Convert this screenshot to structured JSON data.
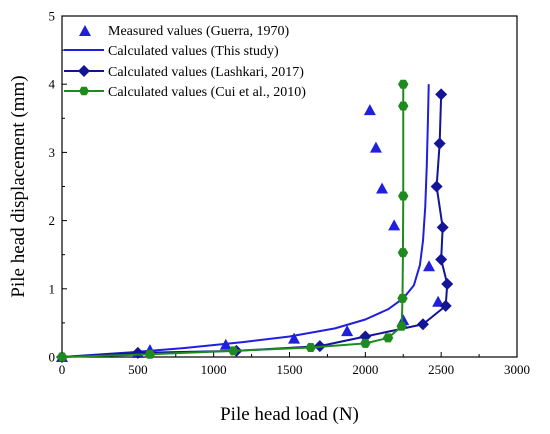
{
  "chart_data": {
    "type": "line",
    "title": "",
    "xlabel": "Pile head load (N)",
    "ylabel": "Pile head displacement (mm)",
    "xlim": [
      0,
      3000
    ],
    "ylim": [
      0,
      5
    ],
    "xticks": [
      0,
      500,
      1000,
      1500,
      2000,
      2500,
      3000
    ],
    "yticks": [
      0,
      1,
      2,
      3,
      4,
      5
    ],
    "grid": false,
    "legend_position": "top-left",
    "series": [
      {
        "name": "Measured values (Guerra, 1970)",
        "kind": "scatter",
        "marker": "triangle",
        "color": "#1f1fdd",
        "points": [
          [
            0,
            0
          ],
          [
            500,
            0.06
          ],
          [
            580,
            0.1
          ],
          [
            1080,
            0.18
          ],
          [
            1530,
            0.27
          ],
          [
            1880,
            0.38
          ],
          [
            2030,
            3.62
          ],
          [
            2070,
            3.07
          ],
          [
            2110,
            2.47
          ],
          [
            2190,
            1.93
          ],
          [
            2250,
            0.54
          ],
          [
            2420,
            1.33
          ],
          [
            2480,
            0.81
          ]
        ]
      },
      {
        "name": "Calculated values (This study)",
        "kind": "line",
        "marker": "none",
        "color": "#1f1fdd",
        "points": [
          [
            0,
            0
          ],
          [
            400,
            0.06
          ],
          [
            800,
            0.13
          ],
          [
            1200,
            0.22
          ],
          [
            1500,
            0.3
          ],
          [
            1800,
            0.42
          ],
          [
            2000,
            0.55
          ],
          [
            2150,
            0.7
          ],
          [
            2250,
            0.86
          ],
          [
            2320,
            1.05
          ],
          [
            2360,
            1.35
          ],
          [
            2380,
            1.7
          ],
          [
            2395,
            2.2
          ],
          [
            2405,
            2.8
          ],
          [
            2412,
            3.4
          ],
          [
            2418,
            4.0
          ]
        ]
      },
      {
        "name": "Calculated values (Lashkari, 2017)",
        "kind": "line",
        "marker": "diamond",
        "color": "#141496",
        "points": [
          [
            0,
            0
          ],
          [
            500,
            0.06
          ],
          [
            1150,
            0.09
          ],
          [
            1700,
            0.16
          ],
          [
            2000,
            0.3
          ],
          [
            2380,
            0.48
          ],
          [
            2530,
            0.75
          ],
          [
            2540,
            1.07
          ],
          [
            2500,
            1.43
          ],
          [
            2510,
            1.9
          ],
          [
            2470,
            2.5
          ],
          [
            2490,
            3.13
          ],
          [
            2500,
            3.85
          ]
        ]
      },
      {
        "name": "Calculated values (Cui et al., 2010)",
        "kind": "line",
        "marker": "hexagon",
        "color": "#1f8a1f",
        "points": [
          [
            0,
            0
          ],
          [
            580,
            0.04
          ],
          [
            1130,
            0.09
          ],
          [
            1640,
            0.14
          ],
          [
            2000,
            0.2
          ],
          [
            2150,
            0.28
          ],
          [
            2240,
            0.45
          ],
          [
            2245,
            0.86
          ],
          [
            2248,
            1.53
          ],
          [
            2250,
            2.36
          ],
          [
            2250,
            3.68
          ],
          [
            2250,
            4.0
          ]
        ]
      }
    ]
  }
}
